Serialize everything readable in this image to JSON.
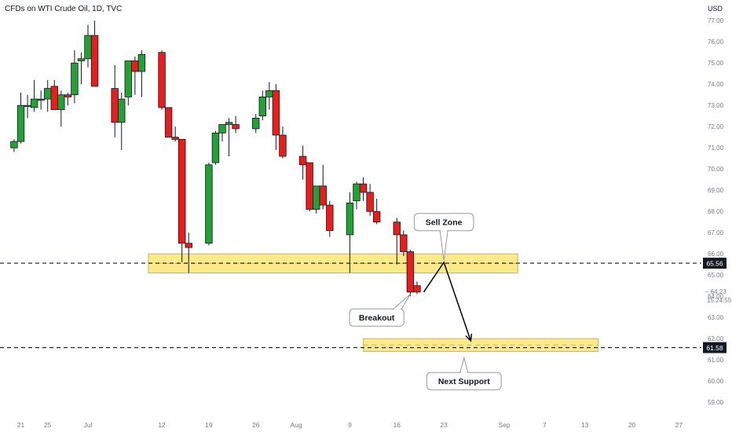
{
  "header": {
    "title": "CFDs on WTI Crude Oil, 1D, TVC",
    "currency": "USD"
  },
  "colors": {
    "up": "#22a234",
    "down": "#ea1c1c",
    "zone": "#fbe98a",
    "zone_border": "#c9b94d",
    "line": "#131722",
    "axis_text": "#787b86"
  },
  "chart_data": {
    "type": "candlestick",
    "title": "CFDs on WTI Crude Oil, 1D, TVC",
    "ylim": [
      58.5,
      77.6
    ],
    "y_ticks": [
      59.0,
      60.0,
      61.0,
      62.0,
      63.0,
      64.0,
      65.0,
      66.0,
      67.0,
      68.0,
      69.0,
      70.0,
      71.0,
      72.0,
      73.0,
      74.0,
      75.0,
      76.0,
      77.0
    ],
    "x_ticks": [
      {
        "label": "21",
        "day": -10
      },
      {
        "label": "25",
        "day": -6
      },
      {
        "label": "Jul",
        "day": 0
      },
      {
        "label": "12",
        "day": 11
      },
      {
        "label": "19",
        "day": 18
      },
      {
        "label": "26",
        "day": 25
      },
      {
        "label": "Aug",
        "day": 31
      },
      {
        "label": "9",
        "day": 39
      },
      {
        "label": "16",
        "day": 46
      },
      {
        "label": "23",
        "day": 53
      },
      {
        "label": "Sep",
        "day": 62
      },
      {
        "label": "7",
        "day": 68
      },
      {
        "label": "13",
        "day": 74
      },
      {
        "label": "20",
        "day": 81
      },
      {
        "label": "27",
        "day": 88
      }
    ],
    "candles": [
      {
        "day": -11,
        "open": 71.0,
        "high": 71.4,
        "low": 70.8,
        "close": 71.3
      },
      {
        "day": -10,
        "open": 71.3,
        "high": 73.6,
        "low": 71.2,
        "close": 73.0
      },
      {
        "day": -9,
        "open": 73.0,
        "high": 73.5,
        "low": 72.4,
        "close": 73.0
      },
      {
        "day": -8,
        "open": 72.9,
        "high": 74.2,
        "low": 72.7,
        "close": 73.3
      },
      {
        "day": -7,
        "open": 73.3,
        "high": 73.7,
        "low": 72.8,
        "close": 73.3
      },
      {
        "day": -6,
        "open": 73.3,
        "high": 74.2,
        "low": 72.7,
        "close": 73.8
      },
      {
        "day": -5,
        "open": 73.9,
        "high": 74.2,
        "low": 72.8,
        "close": 72.8
      },
      {
        "day": -4,
        "open": 72.8,
        "high": 73.7,
        "low": 72.0,
        "close": 73.5
      },
      {
        "day": -3,
        "open": 73.5,
        "high": 73.6,
        "low": 73.0,
        "close": 73.4
      },
      {
        "day": -2,
        "open": 73.5,
        "high": 75.6,
        "low": 73.1,
        "close": 75.0
      },
      {
        "day": -1,
        "open": 75.1,
        "high": 75.5,
        "low": 74.0,
        "close": 75.2
      },
      {
        "day": 0,
        "open": 75.2,
        "high": 76.8,
        "low": 74.8,
        "close": 76.3
      },
      {
        "day": 1,
        "open": 76.3,
        "high": 77.0,
        "low": 73.9,
        "close": 73.9
      },
      {
        "day": 4,
        "open": 73.8,
        "high": 74.9,
        "low": 71.5,
        "close": 72.2
      },
      {
        "day": 5,
        "open": 72.2,
        "high": 73.6,
        "low": 70.9,
        "close": 73.3
      },
      {
        "day": 6,
        "open": 73.4,
        "high": 75.1,
        "low": 73.0,
        "close": 75.1
      },
      {
        "day": 7,
        "open": 75.1,
        "high": 75.3,
        "low": 73.5,
        "close": 74.6
      },
      {
        "day": 8,
        "open": 74.6,
        "high": 75.6,
        "low": 73.4,
        "close": 75.4
      },
      {
        "day": 11,
        "open": 75.5,
        "high": 75.6,
        "low": 72.8,
        "close": 72.9
      },
      {
        "day": 12,
        "open": 72.9,
        "high": 72.9,
        "low": 71.5,
        "close": 71.5
      },
      {
        "day": 13,
        "open": 71.5,
        "high": 72.0,
        "low": 71.3,
        "close": 71.4
      },
      {
        "day": 14,
        "open": 71.4,
        "high": 71.4,
        "low": 65.6,
        "close": 66.5
      },
      {
        "day": 15,
        "open": 66.5,
        "high": 67.0,
        "low": 65.1,
        "close": 66.3
      },
      {
        "day": 18,
        "open": 66.5,
        "high": 70.3,
        "low": 66.4,
        "close": 70.2
      },
      {
        "day": 19,
        "open": 70.3,
        "high": 71.8,
        "low": 70.2,
        "close": 71.7
      },
      {
        "day": 20,
        "open": 71.7,
        "high": 72.1,
        "low": 71.3,
        "close": 72.1
      },
      {
        "day": 21,
        "open": 72.1,
        "high": 72.4,
        "low": 70.6,
        "close": 72.2
      },
      {
        "day": 22,
        "open": 72.1,
        "high": 72.5,
        "low": 71.7,
        "close": 71.9
      },
      {
        "day": 25,
        "open": 71.9,
        "high": 72.6,
        "low": 71.7,
        "close": 72.4
      },
      {
        "day": 26,
        "open": 72.5,
        "high": 73.7,
        "low": 72.3,
        "close": 73.4
      },
      {
        "day": 27,
        "open": 73.4,
        "high": 74.1,
        "low": 72.8,
        "close": 73.7
      },
      {
        "day": 28,
        "open": 73.7,
        "high": 74.0,
        "low": 70.9,
        "close": 71.6
      },
      {
        "day": 29,
        "open": 71.6,
        "high": 72.0,
        "low": 70.5,
        "close": 70.6
      },
      {
        "day": 32,
        "open": 70.6,
        "high": 71.1,
        "low": 69.5,
        "close": 70.2
      },
      {
        "day": 33,
        "open": 70.3,
        "high": 70.3,
        "low": 68.0,
        "close": 68.1
      },
      {
        "day": 34,
        "open": 68.1,
        "high": 69.2,
        "low": 67.9,
        "close": 69.2
      },
      {
        "day": 35,
        "open": 69.2,
        "high": 70.2,
        "low": 68.1,
        "close": 68.3
      },
      {
        "day": 36,
        "open": 68.3,
        "high": 68.5,
        "low": 66.8,
        "close": 67.1
      },
      {
        "day": 39,
        "open": 66.9,
        "high": 68.9,
        "low": 65.1,
        "close": 68.4
      },
      {
        "day": 40,
        "open": 68.5,
        "high": 69.4,
        "low": 68.1,
        "close": 69.3
      },
      {
        "day": 41,
        "open": 69.3,
        "high": 69.6,
        "low": 68.5,
        "close": 68.9
      },
      {
        "day": 42,
        "open": 68.9,
        "high": 69.3,
        "low": 67.8,
        "close": 68.0
      },
      {
        "day": 43,
        "open": 68.0,
        "high": 68.6,
        "low": 67.4,
        "close": 67.5
      },
      {
        "day": 46,
        "open": 67.5,
        "high": 67.7,
        "low": 65.5,
        "close": 66.9
      },
      {
        "day": 47,
        "open": 66.9,
        "high": 67.1,
        "low": 65.9,
        "close": 66.1
      },
      {
        "day": 48,
        "open": 66.1,
        "high": 66.2,
        "low": 64.0,
        "close": 64.2
      },
      {
        "day": 49,
        "open": 64.5,
        "high": 64.7,
        "low": 64.1,
        "close": 64.2
      }
    ],
    "zones": [
      {
        "name": "upper-zone",
        "low": 65.1,
        "high": 66.0,
        "day_start": 9,
        "day_end": 64
      },
      {
        "name": "lower-zone",
        "low": 61.4,
        "high": 62.0,
        "day_start": 41,
        "day_end": 76
      }
    ],
    "levels": [
      {
        "value": 65.56,
        "label": "65.56"
      },
      {
        "value": 61.58,
        "label": "61.58"
      }
    ],
    "last_price": {
      "value": 64.23,
      "label": "64.23",
      "countdown": "15:24:55"
    },
    "projection_path": [
      {
        "day": 50,
        "price": 64.2
      },
      {
        "day": 53,
        "price": 65.6
      },
      {
        "day": 57,
        "price": 61.9
      }
    ],
    "annotations": [
      {
        "name": "sell-zone-callout",
        "text": "Sell Zone",
        "day": 53,
        "price": 67.5,
        "tail_day": 53,
        "tail_price": 65.7
      },
      {
        "name": "breakout-callout",
        "text": "Breakout",
        "day": 43,
        "price": 63.0,
        "tail_day": 48,
        "tail_price": 64.1
      },
      {
        "name": "next-support-callout",
        "text": "Next Support",
        "day": 56,
        "price": 60.0,
        "tail_day": 56,
        "tail_price": 61.1
      }
    ]
  }
}
